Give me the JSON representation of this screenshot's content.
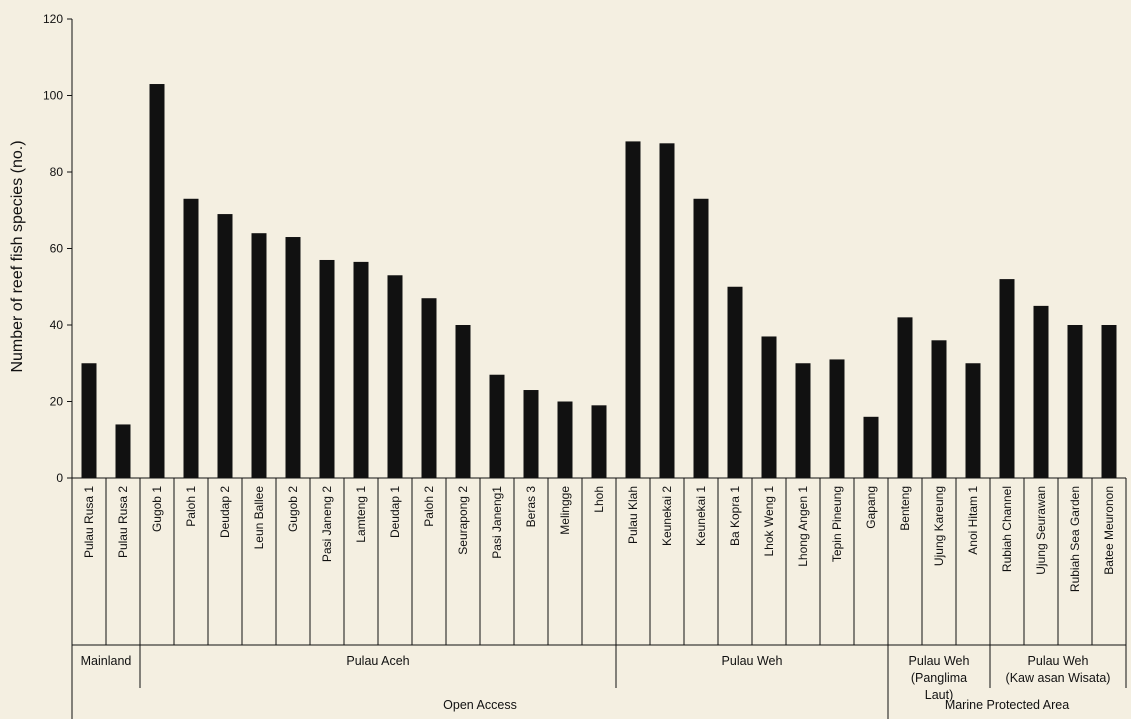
{
  "chart_data": {
    "type": "bar",
    "ylabel": "Number of reef fish species (no.)",
    "ylim": [
      0,
      120
    ],
    "yticks": [
      "0",
      "20",
      "40",
      "60",
      "80",
      "100",
      "120"
    ],
    "categories": [
      "Pulau Rusa 1",
      "Pulau Rusa 2",
      "Gugob 1",
      "Paloh 1",
      "Deudap 2",
      "Leun Ballee",
      "Gugob 2",
      "Pasi Janeng 2",
      "Lamteng 1",
      "Deudap 1",
      "Paloh 2",
      "Seurapong 2",
      "Pasi Janeng1",
      "Beras 3",
      "Melingge",
      "Lhoh",
      "Pulau Klah",
      "Keunekai 2",
      "Keunekai 1",
      "Ba Kopra 1",
      "Lhok Weng 1",
      "Lhong Angen 1",
      "Tepin Pineung",
      "Gapang",
      "Benteng",
      "Ujung Kareung",
      "Anoi Hitam 1",
      "Rubiah Channel",
      "Ujung Seurawan",
      "Rubiah Sea Garden",
      "Batee Meuronon"
    ],
    "values": [
      30,
      14,
      103,
      73,
      69,
      64,
      63,
      57,
      56.5,
      53,
      47,
      40,
      27,
      23,
      20,
      19,
      88,
      87.5,
      73,
      50,
      37,
      30,
      31,
      16,
      42,
      36,
      30,
      52,
      45,
      40,
      40
    ],
    "bar_color": "#111111",
    "groups_level1": [
      {
        "lines": [
          "Mainland"
        ],
        "start": 0,
        "end": 1
      },
      {
        "lines": [
          "Pulau Aceh"
        ],
        "start": 2,
        "end": 15
      },
      {
        "lines": [
          "Pulau Weh"
        ],
        "start": 16,
        "end": 23
      },
      {
        "lines": [
          "Pulau Weh",
          "(Panglima",
          "Laut)"
        ],
        "start": 24,
        "end": 26
      },
      {
        "lines": [
          "Pulau Weh",
          "(Kaw asan Wisata)"
        ],
        "start": 27,
        "end": 30
      }
    ],
    "groups_level2": [
      {
        "lines": [
          "Open Access"
        ],
        "start": 0,
        "end": 23
      },
      {
        "lines": [
          "Marine Protected Area"
        ],
        "start": 24,
        "end": 30
      }
    ],
    "grid": false
  }
}
